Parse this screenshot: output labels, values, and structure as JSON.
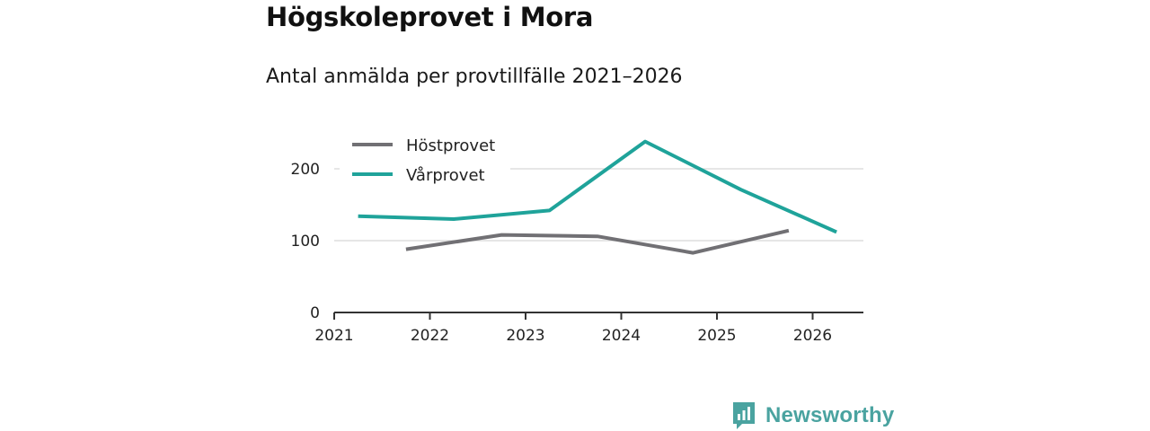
{
  "page": {
    "title": "Högskoleprovet i Mora",
    "subtitle": "Antal anmälda per provtillfälle 2021–2026",
    "brand": "Newsworthy"
  },
  "colors": {
    "hostprovet": "#717074",
    "varprovet": "#1fa39a",
    "grid": "#dddddd",
    "axis": "#333333",
    "brand": "#4aa3a0"
  },
  "chart_data": {
    "type": "line",
    "title": "Högskoleprovet i Mora",
    "subtitle": "Antal anmälda per provtillfälle 2021–2026",
    "xlabel": "",
    "ylabel": "",
    "xlim": [
      2021,
      2026.5
    ],
    "ylim": [
      0,
      240
    ],
    "yticks": [
      0,
      100,
      200
    ],
    "xticks": [
      "2021",
      "2022",
      "2023",
      "2024",
      "2025",
      "2026"
    ],
    "grid": true,
    "legend_position": "top-left",
    "series": [
      {
        "name": "Höstprovet",
        "color": "#717074",
        "x": [
          2021.75,
          2022.75,
          2023.75,
          2024.75,
          2025.75
        ],
        "values": [
          88,
          108,
          106,
          83,
          114
        ]
      },
      {
        "name": "Vårprovet",
        "color": "#1fa39a",
        "x": [
          2021.25,
          2022.25,
          2023.25,
          2024.25,
          2025.25,
          2026.25
        ],
        "values": [
          134,
          130,
          142,
          238,
          171,
          112
        ]
      }
    ]
  }
}
